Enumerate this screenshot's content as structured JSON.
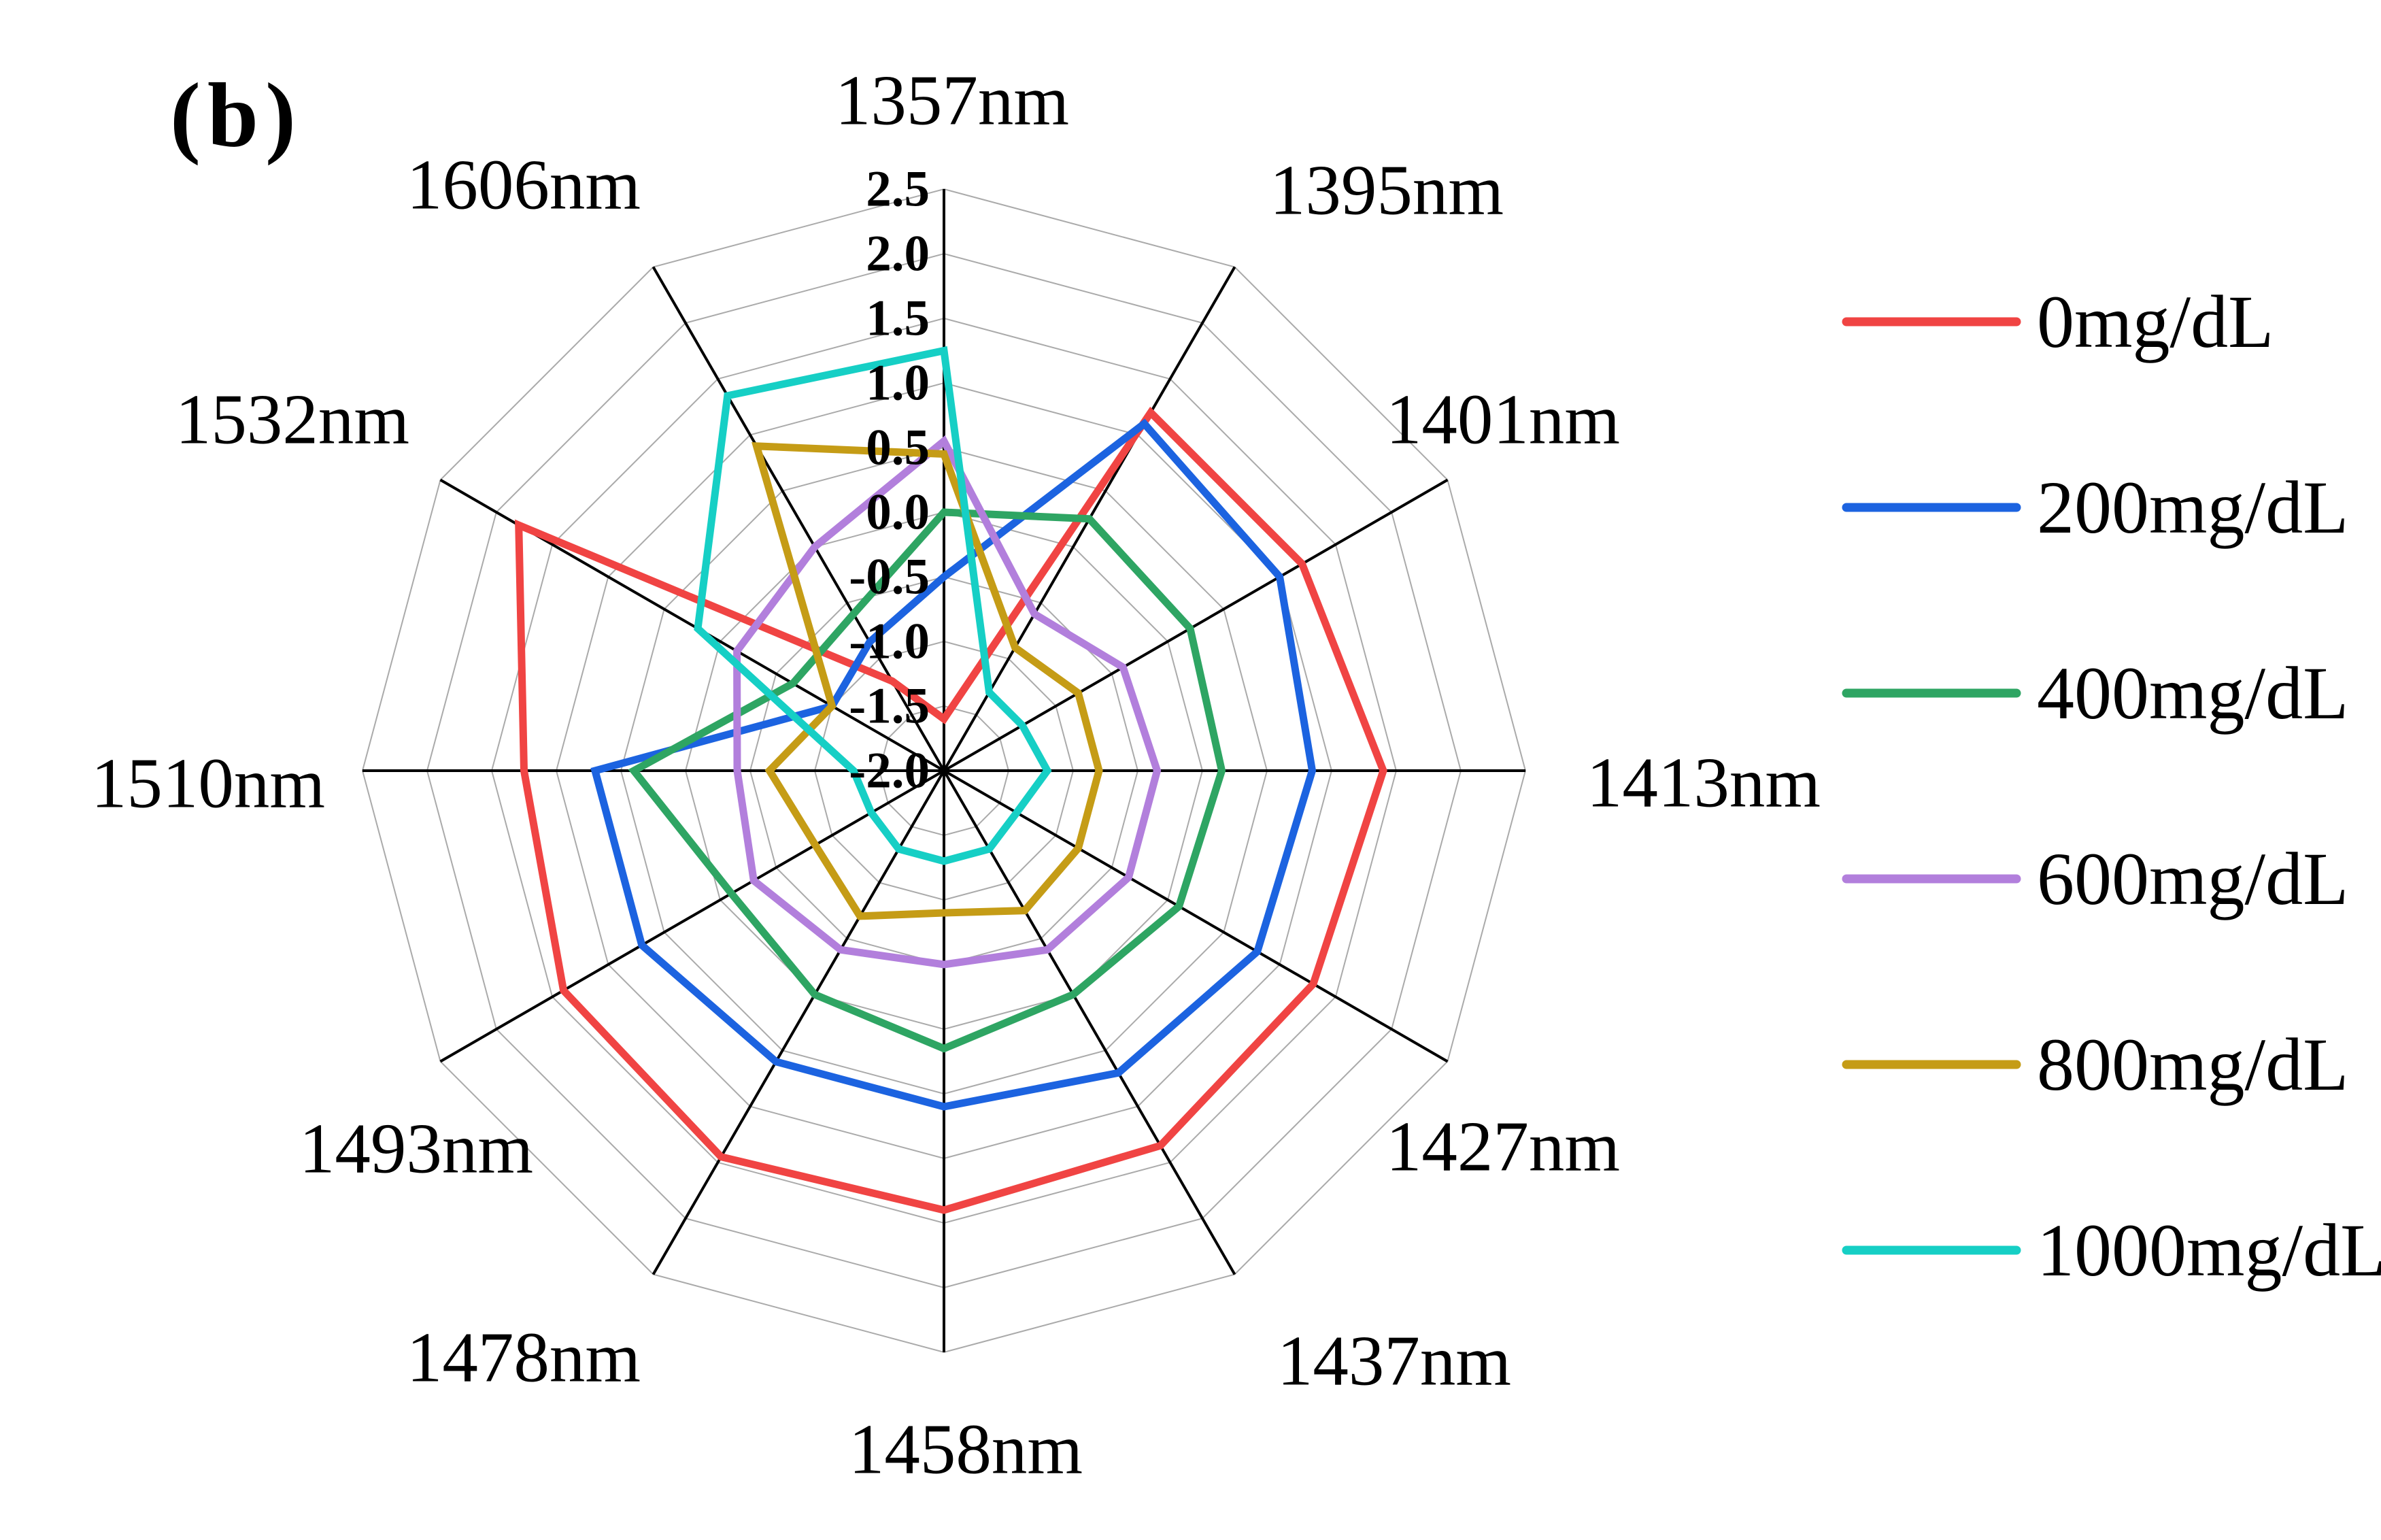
{
  "panel_label": "(b)",
  "chart_data": {
    "type": "radar",
    "title": "",
    "categories": [
      "1357nm",
      "1395nm",
      "1401nm",
      "1413nm",
      "1427nm",
      "1437nm",
      "1458nm",
      "1478nm",
      "1493nm",
      "1510nm",
      "1532nm",
      "1606nm"
    ],
    "radial_axis": {
      "min": -2.0,
      "max": 2.5,
      "step": 0.5,
      "tick_labels": [
        "2.5",
        "2.0",
        "1.5",
        "1.0",
        "0.5",
        "0.0",
        "-0.5",
        "-1.0",
        "-1.5",
        "-2.0"
      ]
    },
    "grid": true,
    "legend_position": "right",
    "series": [
      {
        "name": "0mg/dL",
        "color": "#f04443",
        "values": [
          -1.6,
          1.2,
          1.2,
          1.4,
          1.3,
          1.35,
          1.4,
          1.45,
          1.4,
          1.25,
          1.8,
          -1.2
        ]
      },
      {
        "name": "200mg/dL",
        "color": "#1c63e0",
        "values": [
          -0.5,
          1.1,
          1.0,
          0.85,
          0.8,
          0.7,
          0.6,
          0.6,
          0.7,
          0.7,
          -1.0,
          -0.85
        ]
      },
      {
        "name": "400mg/dL",
        "color": "#2ea563",
        "values": [
          0.0,
          0.25,
          0.2,
          0.15,
          0.1,
          0.0,
          0.15,
          0.0,
          -0.1,
          0.4,
          -0.65,
          -0.6
        ]
      },
      {
        "name": "600mg/dL",
        "color": "#b27fdc",
        "values": [
          0.55,
          -0.6,
          -0.4,
          -0.35,
          -0.35,
          -0.4,
          -0.5,
          -0.4,
          -0.3,
          -0.4,
          -0.15,
          0.0
        ]
      },
      {
        "name": "800mg/dL",
        "color": "#c59c16",
        "values": [
          0.45,
          -0.9,
          -0.8,
          -0.8,
          -0.8,
          -0.75,
          -0.9,
          -0.7,
          -0.85,
          -0.65,
          -1.0,
          0.9
        ]
      },
      {
        "name": "1000mg/dL",
        "color": "#16cfc5",
        "values": [
          1.25,
          -1.3,
          -1.3,
          -1.2,
          -1.35,
          -1.3,
          -1.3,
          -1.3,
          -1.35,
          -1.3,
          0.2,
          1.35
        ]
      }
    ]
  }
}
